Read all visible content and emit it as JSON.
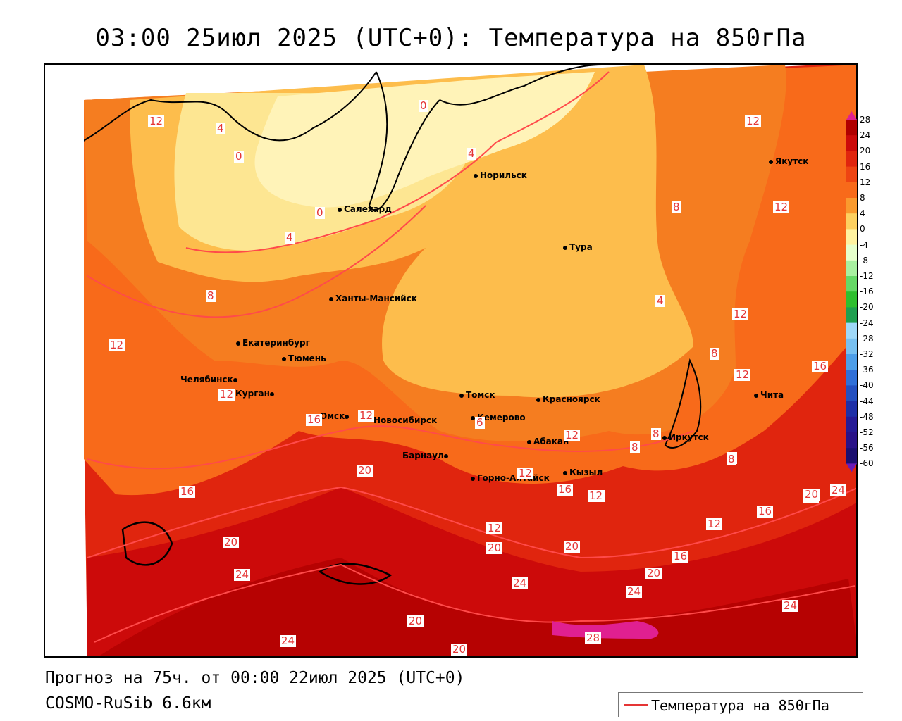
{
  "title": "03:00 25июл 2025 (UTC+0): Температура на 850гПа",
  "footer": {
    "forecast": "Прогноз на 75ч. от 00:00 22июл 2025 (UTC+0)",
    "model": "COSMO-RuSib 6.6км"
  },
  "legend": {
    "label": "Температура на 850гПа",
    "line_color": "#e53535"
  },
  "colorbar": {
    "labels": [
      "28",
      "24",
      "20",
      "16",
      "12",
      "8",
      "4",
      "0",
      "-4",
      "-8",
      "-12",
      "-16",
      "-20",
      "-24",
      "-28",
      "-32",
      "-36",
      "-40",
      "-44",
      "-48",
      "-52",
      "-56",
      "-60"
    ],
    "colors": [
      "#b00000",
      "#cc0a0a",
      "#e0250e",
      "#ee4412",
      "#f86a1a",
      "#fa9a2e",
      "#fdd060",
      "#fff2a0",
      "#e6ffcc",
      "#a8f0a0",
      "#66d866",
      "#2fbf2f",
      "#1f9f4f",
      "#9fd8f8",
      "#78c0f0",
      "#4e9ee8",
      "#3070d8",
      "#2450c0",
      "#1e30a8",
      "#261b96",
      "#2a1288",
      "#1b0f70"
    ],
    "top_arrow_color": "#e02090",
    "bottom_arrow_color": "#6a1ab8"
  },
  "cities": [
    {
      "name": "Норильск"
    },
    {
      "name": "Якутск"
    },
    {
      "name": "Салехард"
    },
    {
      "name": "Тура"
    },
    {
      "name": "Ханты-Мансийск"
    },
    {
      "name": "Екатеринбург"
    },
    {
      "name": "Тюмень"
    },
    {
      "name": "Челябинск"
    },
    {
      "name": "Курган"
    },
    {
      "name": "Омск"
    },
    {
      "name": "Новосибирск"
    },
    {
      "name": "Томск"
    },
    {
      "name": "Красноярск"
    },
    {
      "name": "Кемерово"
    },
    {
      "name": "Абакан"
    },
    {
      "name": "Барнаул"
    },
    {
      "name": "Иркутск"
    },
    {
      "name": "Чита"
    },
    {
      "name": "Горно-Алтайск"
    },
    {
      "name": "Кызыл"
    }
  ],
  "isotherm_labels": [
    "12",
    "4",
    "0",
    "0",
    "4",
    "12",
    "8",
    "12",
    "0",
    "4",
    "8",
    "12",
    "4",
    "12",
    "8",
    "12",
    "16",
    "12",
    "12",
    "8",
    "16",
    "12",
    "12",
    "6",
    "8",
    "20",
    "16",
    "12",
    "12",
    "8",
    "16",
    "20",
    "12",
    "16",
    "24",
    "20",
    "16",
    "20",
    "20",
    "20",
    "24",
    "24",
    "20",
    "24",
    "24",
    "20",
    "28",
    "20",
    "24",
    "16",
    "12",
    "8"
  ]
}
